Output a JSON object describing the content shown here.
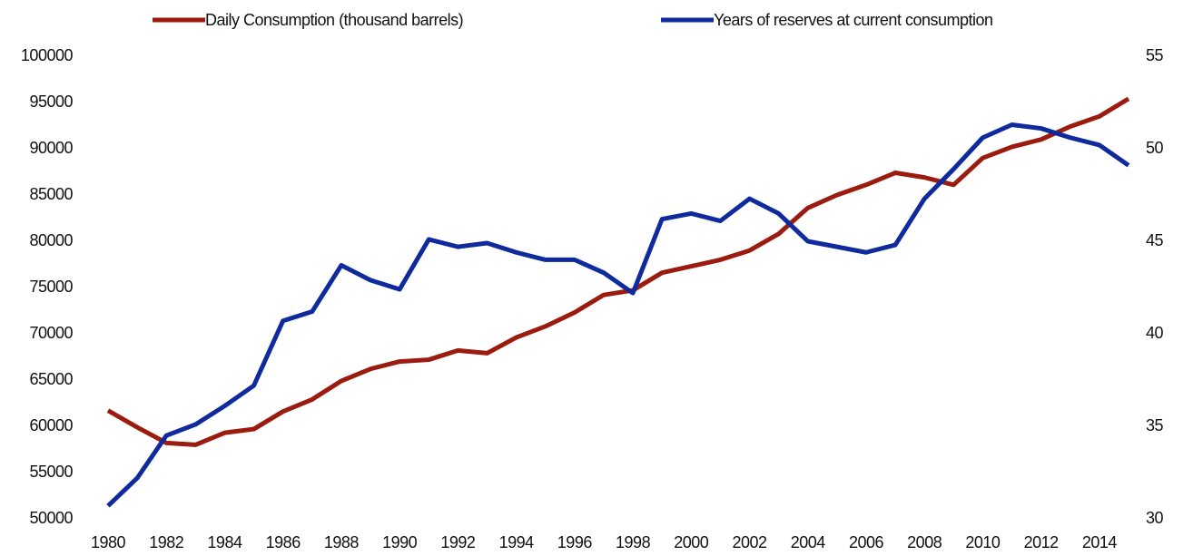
{
  "chart_data": {
    "type": "line",
    "x": [
      1980,
      1981,
      1982,
      1983,
      1984,
      1985,
      1986,
      1987,
      1988,
      1989,
      1990,
      1991,
      1992,
      1993,
      1994,
      1995,
      1996,
      1997,
      1998,
      1999,
      2000,
      2001,
      2002,
      2003,
      2004,
      2005,
      2006,
      2007,
      2008,
      2009,
      2010,
      2011,
      2012,
      2013,
      2014,
      2015
    ],
    "xlim": [
      1980,
      2015
    ],
    "xticks": [
      1980,
      1982,
      1984,
      1986,
      1988,
      1990,
      1992,
      1994,
      1996,
      1998,
      2000,
      2002,
      2004,
      2006,
      2008,
      2010,
      2012,
      2014
    ],
    "ylim": [
      50000,
      100000
    ],
    "yticks": [
      50000,
      55000,
      60000,
      65000,
      70000,
      75000,
      80000,
      85000,
      90000,
      95000,
      100000
    ],
    "y2lim": [
      30,
      55
    ],
    "y2ticks": [
      30,
      35,
      40,
      45,
      50,
      55
    ],
    "legend": "top",
    "series": [
      {
        "name": "Daily Consumption (thousand barrels)",
        "color": "#9b1b0e",
        "values": [
          61700,
          59900,
          58200,
          58000,
          59300,
          59700,
          61600,
          62900,
          64900,
          66200,
          67000,
          67200,
          68200,
          67900,
          69600,
          70800,
          72300,
          74200,
          74700,
          76600,
          77300,
          78000,
          79000,
          80800,
          83600,
          85000,
          86100,
          87400,
          86900,
          86100,
          89000,
          90200,
          91000,
          92400,
          93500,
          95400
        ]
      },
      {
        "name": "Years of reserves at current consumption",
        "color": "#0f2a9c",
        "axis": "y2",
        "values": [
          30.7,
          32.2,
          34.5,
          35.1,
          36.1,
          37.2,
          40.7,
          41.2,
          43.7,
          42.9,
          42.4,
          45.1,
          44.7,
          44.9,
          44.4,
          44.0,
          44.0,
          43.3,
          42.2,
          46.2,
          46.5,
          46.1,
          47.3,
          46.5,
          45.0,
          44.7,
          44.4,
          44.8,
          47.3,
          48.9,
          50.6,
          51.3,
          51.1,
          50.6,
          50.2,
          49.1
        ]
      }
    ]
  }
}
